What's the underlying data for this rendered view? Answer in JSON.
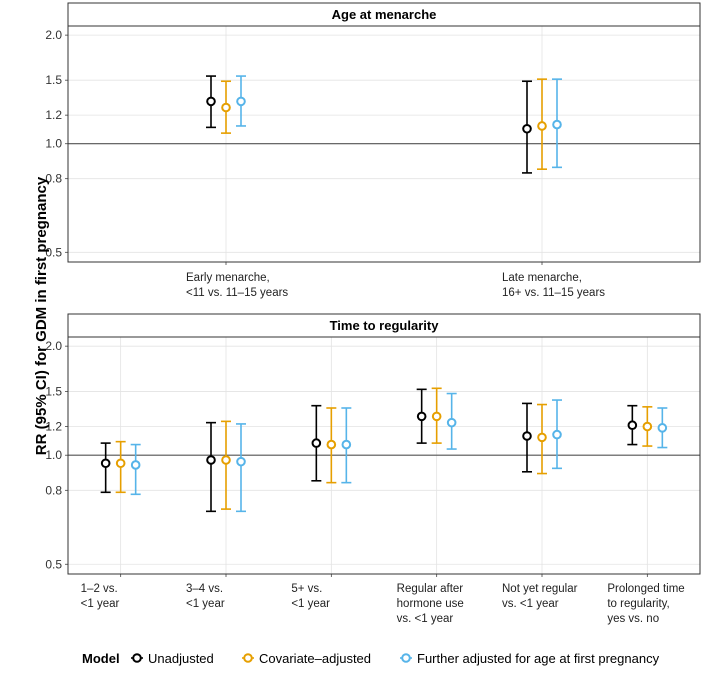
{
  "chart_data": {
    "type": "scatter",
    "subtype": "forest-plot",
    "y_scale": "log",
    "ylabel": "RR (95% CI) for GDM in first pregnancy",
    "y_ticks": [
      0.5,
      0.8,
      1.0,
      1.2,
      1.5,
      2.0
    ],
    "y_tick_labels": [
      "0.5",
      "0.8",
      "1.0",
      "1.2",
      "1.5",
      "2.0"
    ],
    "ylim": [
      0.47,
      2.12
    ],
    "reference_line": 1.0,
    "legend": {
      "title": "Model",
      "position": "bottom",
      "entries": [
        {
          "name": "Unadjusted",
          "color": "#000000"
        },
        {
          "name": "Covariate–adjusted",
          "color": "#E69F00"
        },
        {
          "name": "Further adjusted for age at first pregnancy",
          "color": "#56B4E9"
        }
      ]
    },
    "panels": [
      {
        "title": "Age at menarche",
        "categories": [
          [
            "Early menarche,",
            "<11 vs. 11–15 years"
          ],
          [
            "Late menarche,",
            "16+ vs. 11–15 years"
          ]
        ],
        "series": [
          {
            "name": "Unadjusted",
            "points": [
              {
                "rr": 1.31,
                "lo": 1.11,
                "hi": 1.54
              },
              {
                "rr": 1.1,
                "lo": 0.83,
                "hi": 1.49
              }
            ]
          },
          {
            "name": "Covariate–adjusted",
            "points": [
              {
                "rr": 1.26,
                "lo": 1.07,
                "hi": 1.49
              },
              {
                "rr": 1.12,
                "lo": 0.85,
                "hi": 1.51
              }
            ]
          },
          {
            "name": "Further adjusted for age at first pregnancy",
            "points": [
              {
                "rr": 1.31,
                "lo": 1.12,
                "hi": 1.54
              },
              {
                "rr": 1.13,
                "lo": 0.86,
                "hi": 1.51
              }
            ]
          }
        ]
      },
      {
        "title": "Time to regularity",
        "categories": [
          [
            "1–2 vs.",
            "<1 year"
          ],
          [
            "3–4 vs.",
            "<1 year"
          ],
          [
            "5+ vs.",
            "<1 year"
          ],
          [
            "Regular after",
            "hormone use",
            "vs. <1 year"
          ],
          [
            "Not yet regular",
            "vs. <1 year"
          ],
          [
            "Prolonged time",
            "to regularity,",
            "yes vs. no"
          ]
        ],
        "series": [
          {
            "name": "Unadjusted",
            "points": [
              {
                "rr": 0.95,
                "lo": 0.79,
                "hi": 1.08
              },
              {
                "rr": 0.97,
                "lo": 0.7,
                "hi": 1.23
              },
              {
                "rr": 1.08,
                "lo": 0.85,
                "hi": 1.37
              },
              {
                "rr": 1.28,
                "lo": 1.08,
                "hi": 1.52
              },
              {
                "rr": 1.13,
                "lo": 0.9,
                "hi": 1.39
              },
              {
                "rr": 1.21,
                "lo": 1.07,
                "hi": 1.37
              }
            ]
          },
          {
            "name": "Covariate–adjusted",
            "points": [
              {
                "rr": 0.95,
                "lo": 0.79,
                "hi": 1.09
              },
              {
                "rr": 0.97,
                "lo": 0.71,
                "hi": 1.24
              },
              {
                "rr": 1.07,
                "lo": 0.84,
                "hi": 1.35
              },
              {
                "rr": 1.28,
                "lo": 1.08,
                "hi": 1.53
              },
              {
                "rr": 1.12,
                "lo": 0.89,
                "hi": 1.38
              },
              {
                "rr": 1.2,
                "lo": 1.06,
                "hi": 1.36
              }
            ]
          },
          {
            "name": "Further adjusted for age at first pregnancy",
            "points": [
              {
                "rr": 0.94,
                "lo": 0.78,
                "hi": 1.07
              },
              {
                "rr": 0.96,
                "lo": 0.7,
                "hi": 1.22
              },
              {
                "rr": 1.07,
                "lo": 0.84,
                "hi": 1.35
              },
              {
                "rr": 1.23,
                "lo": 1.04,
                "hi": 1.48
              },
              {
                "rr": 1.14,
                "lo": 0.92,
                "hi": 1.42
              },
              {
                "rr": 1.19,
                "lo": 1.05,
                "hi": 1.35
              }
            ]
          }
        ]
      }
    ]
  }
}
